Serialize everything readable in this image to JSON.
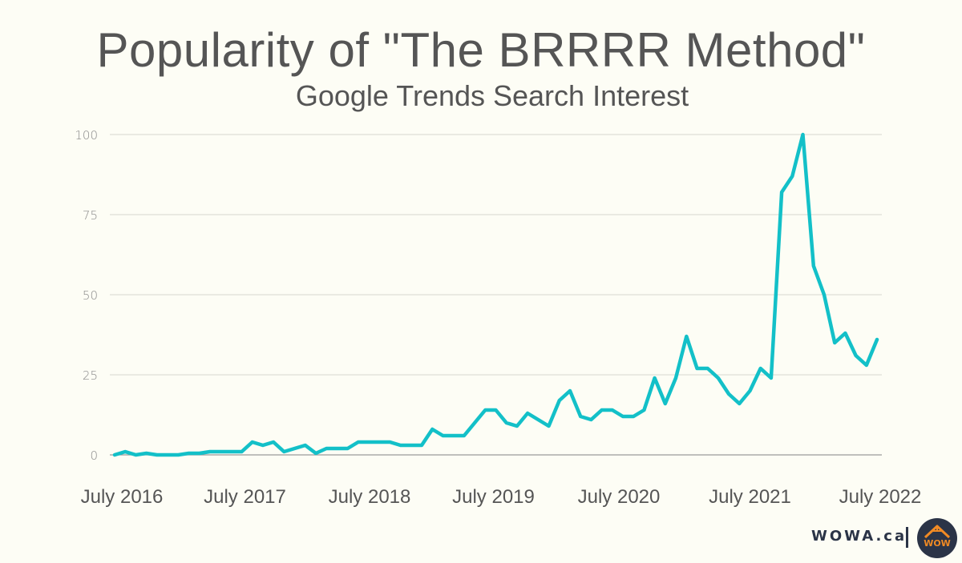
{
  "chart_data": {
    "type": "line",
    "title": "Popularity of \"The BRRRR Method\"",
    "subtitle": "Google Trends Search Interest",
    "xlabel": "",
    "ylabel": "",
    "ylim": [
      0,
      100
    ],
    "yticks": [
      "0",
      "25",
      "50",
      "75",
      "100"
    ],
    "ytick_values": [
      0,
      25,
      50,
      75,
      100
    ],
    "grid": true,
    "x_start": "July 2016",
    "x_frequency": "monthly",
    "xtick_labels": [
      "July 2016",
      "July 2017",
      "July 2018",
      "July 2019",
      "July 2020",
      "July 2021",
      "July 2022"
    ],
    "series": [
      {
        "name": "The BRRRR Method",
        "color": "#13c0c8",
        "values": [
          0,
          1,
          0,
          0.5,
          0,
          0,
          0,
          0.5,
          0.5,
          1,
          1,
          1,
          1,
          4,
          3,
          4,
          1,
          2,
          3,
          0.5,
          2,
          2,
          2,
          4,
          4,
          4,
          4,
          3,
          3,
          3,
          8,
          6,
          6,
          6,
          10,
          14,
          14,
          10,
          9,
          13,
          11,
          9,
          17,
          20,
          12,
          11,
          14,
          14,
          12,
          12,
          14,
          24,
          16,
          24,
          37,
          27,
          27,
          24,
          19,
          16,
          20,
          27,
          24,
          82,
          87,
          100,
          59,
          50,
          35,
          38,
          31,
          28,
          36
        ]
      }
    ]
  },
  "branding": {
    "text": "WOWA.ca",
    "logo_icon": "house-logo-icon",
    "logo_text": "WOW",
    "logo_bg": "#2b3447",
    "logo_fg": "#f08a24"
  }
}
